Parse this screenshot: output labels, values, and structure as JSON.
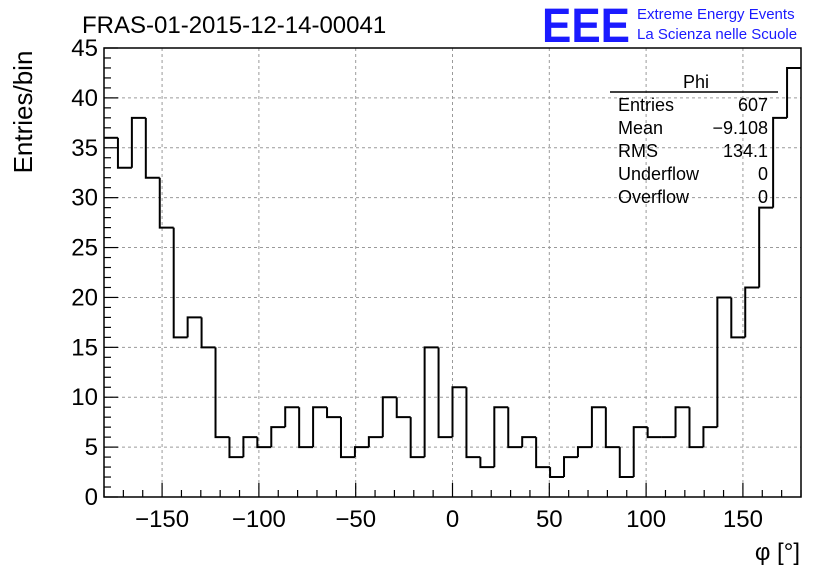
{
  "header": {
    "run_title": "FRAS-01-2015-12-14-00041",
    "logo_text": "EEE",
    "logo_line1": "Extreme Energy Events",
    "logo_line2": "La Scienza nelle Scuole"
  },
  "colors": {
    "logo": "#1a1aff",
    "grid": "#9a9a9a",
    "line": "#000000"
  },
  "chart_data": {
    "type": "histogram",
    "title": "FRAS-01-2015-12-14-00041",
    "xlabel": "φ [°]",
    "ylabel": "Entries/bin",
    "xlim": [
      -180,
      180
    ],
    "ylim": [
      0,
      45
    ],
    "bin_width": 7.2,
    "x_ticks": [
      -150,
      -100,
      -50,
      0,
      50,
      100,
      150
    ],
    "x_tick_labels": [
      "−150",
      "−100",
      "−50",
      "0",
      "50",
      "100",
      "150"
    ],
    "y_ticks": [
      0,
      5,
      10,
      15,
      20,
      25,
      30,
      35,
      40,
      45
    ],
    "y_tick_labels": [
      "0",
      "5",
      "10",
      "15",
      "20",
      "25",
      "30",
      "35",
      "40",
      "45"
    ],
    "grid": true,
    "values": [
      36,
      33,
      38,
      32,
      27,
      16,
      18,
      15,
      6,
      4,
      6,
      5,
      7,
      9,
      5,
      9,
      8,
      4,
      5,
      6,
      10,
      8,
      4,
      15,
      6,
      11,
      4,
      3,
      9,
      5,
      6,
      3,
      2,
      4,
      5,
      9,
      5,
      2,
      7,
      6,
      6,
      9,
      5,
      7,
      20,
      16,
      21,
      29,
      38,
      43
    ]
  },
  "stats_box": {
    "name": "Phi",
    "rows": [
      {
        "label": "Entries",
        "value": "607"
      },
      {
        "label": "Mean",
        "value": "−9.108"
      },
      {
        "label": "RMS",
        "value": "134.1"
      },
      {
        "label": "Underflow",
        "value": "0"
      },
      {
        "label": "Overflow",
        "value": "0"
      }
    ]
  }
}
